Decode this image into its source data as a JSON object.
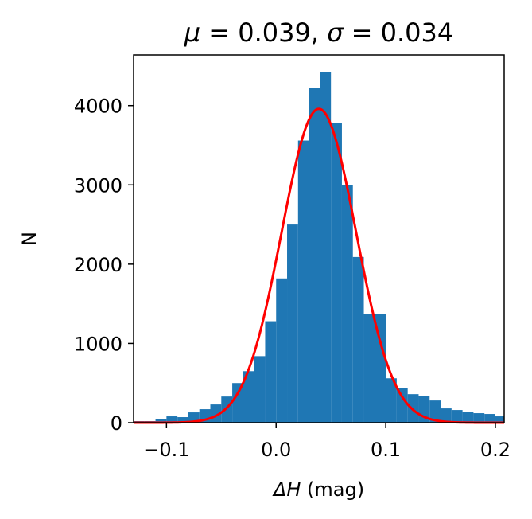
{
  "chart_data": {
    "type": "bar",
    "title": "μ = 0.039, σ = 0.034",
    "title_parts": {
      "mu_symbol": "μ",
      "mu_value": " = 0.039, ",
      "sigma_symbol": "σ",
      "sigma_value": " = 0.034"
    },
    "xlabel": "(mag)",
    "xlabel_symbol": "ΔH",
    "ylabel": "N",
    "xlim": [
      -0.13,
      0.208
    ],
    "ylim": [
      0,
      4640
    ],
    "x_ticks": [
      -0.1,
      0.0,
      0.1,
      0.2
    ],
    "x_tick_labels": [
      "−0.1",
      "0.0",
      "0.1",
      "0.2"
    ],
    "y_ticks": [
      0,
      1000,
      2000,
      3000,
      4000
    ],
    "y_tick_labels": [
      "0",
      "1000",
      "2000",
      "3000",
      "4000"
    ],
    "bin_width": 0.01,
    "series": [
      {
        "type": "histogram",
        "color": "#1f77b4",
        "bin_left_edges": [
          -0.13,
          -0.12,
          -0.11,
          -0.1,
          -0.09,
          -0.08,
          -0.07,
          -0.06,
          -0.05,
          -0.04,
          -0.03,
          -0.02,
          -0.01,
          0.0,
          0.01,
          0.02,
          0.03,
          0.04,
          0.05,
          0.06,
          0.07,
          0.08,
          0.09,
          0.1,
          0.11,
          0.12,
          0.13,
          0.14,
          0.15,
          0.16,
          0.17,
          0.18,
          0.19,
          0.2
        ],
        "values": [
          20,
          20,
          50,
          80,
          70,
          130,
          170,
          230,
          330,
          500,
          650,
          840,
          1280,
          1820,
          2500,
          3560,
          4220,
          4420,
          3780,
          3000,
          2090,
          1370,
          1370,
          560,
          440,
          360,
          340,
          280,
          180,
          160,
          140,
          120,
          110,
          80
        ]
      },
      {
        "type": "line",
        "color": "#ff0000",
        "model": "gaussian",
        "mu": 0.039,
        "sigma": 0.034,
        "peak": 3960
      }
    ]
  }
}
